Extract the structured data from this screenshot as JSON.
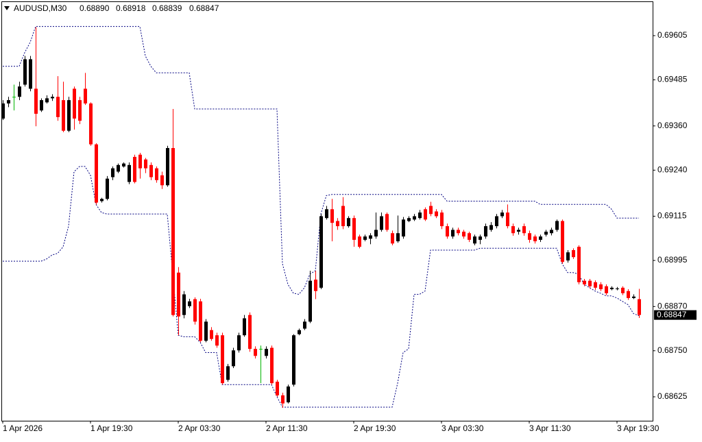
{
  "chart_data": {
    "type": "candlestick",
    "symbol": "AUDUSD,M30",
    "last_value_labels": [
      "0.68890",
      "0.68918",
      "0.68839",
      "0.68847"
    ],
    "categories": [
      "1 Apr 2026",
      null,
      null,
      null,
      null,
      null,
      null,
      null,
      null,
      null,
      null,
      null,
      null,
      null,
      null,
      null,
      "1 Apr 19:30",
      null,
      null,
      null,
      null,
      null,
      null,
      null,
      null,
      null,
      null,
      null,
      null,
      null,
      null,
      null,
      "2 Apr 03:30",
      null,
      null,
      null,
      null,
      null,
      null,
      null,
      null,
      null,
      null,
      null,
      null,
      null,
      null,
      null,
      "2 Apr 11:30",
      null,
      null,
      null,
      null,
      null,
      null,
      null,
      null,
      null,
      null,
      null,
      null,
      null,
      null,
      null,
      "2 Apr 19:30",
      null,
      null,
      null,
      null,
      null,
      null,
      null,
      null,
      null,
      null,
      null,
      null,
      null,
      null,
      null,
      "3 Apr 03:30",
      null,
      null,
      null,
      null,
      null,
      null,
      null,
      null,
      null,
      null,
      null,
      null,
      null,
      null,
      null,
      "3 Apr 11:30",
      null,
      null,
      null,
      null,
      null,
      null,
      null,
      null,
      null,
      null,
      null,
      null,
      null,
      null,
      null,
      "3 Apr 19:30",
      null,
      null,
      null,
      null
    ],
    "open": [
      0.6938,
      0.69421,
      0.69439,
      0.69439,
      0.69472,
      0.69461,
      0.69461,
      0.69402,
      0.69424,
      0.69435,
      0.69439,
      0.6943,
      0.69347,
      0.69461,
      0.6943,
      0.69461,
      0.69421,
      0.6931,
      0.69156,
      0.69162,
      0.69221,
      0.69236,
      0.6925,
      0.69208,
      0.69276,
      0.69282,
      0.69269,
      0.69254,
      0.69245,
      0.69226,
      0.69199,
      0.693,
      0.68962,
      0.68847,
      0.68871,
      0.6889,
      0.68884,
      0.68777,
      0.68806,
      0.68792,
      0.68792,
      0.68671,
      0.68708,
      0.68751,
      0.68792,
      0.68847,
      0.68755,
      0.68755,
      0.68736,
      0.68758,
      0.68666,
      0.68629,
      0.6861,
      0.68658,
      0.68795,
      0.6881,
      0.68829,
      0.68943,
      0.68921,
      0.6911,
      0.69134,
      0.69102,
      0.69143,
      0.69088,
      0.6911,
      0.6906,
      0.69051,
      0.69054,
      0.6906,
      0.69078,
      0.69121,
      0.69069,
      0.69047,
      0.6906,
      0.69102,
      0.69106,
      0.6911,
      0.69134,
      0.69143,
      0.69128,
      0.69125,
      0.69088,
      0.6906,
      0.69078,
      0.69073,
      0.69069,
      0.69041,
      0.69051,
      0.6906,
      0.69078,
      0.69088,
      0.69115,
      0.69125,
      0.69088,
      0.69073,
      0.69088,
      0.69069,
      0.6906,
      0.69051,
      0.69065,
      0.69069,
      0.69078,
      0.69102,
      0.68995,
      0.69023,
      0.69032,
      0.6894,
      0.6894,
      0.68936,
      0.6893,
      0.68925,
      0.68917,
      0.68917,
      0.68921,
      0.68912,
      0.68893,
      0.6889
    ],
    "high": [
      0.6943,
      0.69439,
      0.69472,
      0.6948,
      0.6955,
      0.6955,
      0.69628,
      0.69435,
      0.69443,
      0.69446,
      0.69495,
      0.6948,
      0.69439,
      0.69467,
      0.69439,
      0.69504,
      0.69424,
      0.69313,
      0.69165,
      0.69224,
      0.6925,
      0.69258,
      0.69261,
      0.69261,
      0.69282,
      0.69287,
      0.69273,
      0.69261,
      0.6925,
      0.69236,
      0.69306,
      0.69406,
      0.68977,
      0.68912,
      0.68891,
      0.68895,
      0.68891,
      0.68836,
      0.68814,
      0.68799,
      0.68799,
      0.68714,
      0.68758,
      0.68799,
      0.68847,
      0.68854,
      0.68762,
      0.68764,
      0.68762,
      0.68764,
      0.68671,
      0.68636,
      0.68658,
      0.68795,
      0.6881,
      0.68836,
      0.68967,
      0.68967,
      0.69121,
      0.69143,
      0.69162,
      0.6911,
      0.69167,
      0.69115,
      0.69117,
      0.69065,
      0.69065,
      0.69069,
      0.69125,
      0.69125,
      0.69125,
      0.69076,
      0.69117,
      0.69113,
      0.69115,
      0.69121,
      0.69132,
      0.69139,
      0.69154,
      0.69134,
      0.69132,
      0.69095,
      0.69084,
      0.69084,
      0.69078,
      0.69073,
      0.69065,
      0.69065,
      0.69095,
      0.69099,
      0.69121,
      0.69132,
      0.69147,
      0.69095,
      0.69084,
      0.69095,
      0.69076,
      0.69065,
      0.69065,
      0.69078,
      0.69084,
      0.69106,
      0.69106,
      0.69023,
      0.69028,
      0.69036,
      0.68945,
      0.68945,
      0.68941,
      0.68936,
      0.6893,
      0.68925,
      0.68923,
      0.68925,
      0.68917,
      0.68903,
      0.68918
    ],
    "low": [
      0.69376,
      0.69411,
      0.69402,
      0.6943,
      0.69467,
      0.69454,
      0.69359,
      0.69398,
      0.69421,
      0.69428,
      0.69374,
      0.69343,
      0.69343,
      0.6935,
      0.69365,
      0.69417,
      0.69306,
      0.69147,
      0.69152,
      0.69158,
      0.69213,
      0.69232,
      0.69247,
      0.69202,
      0.69204,
      0.69217,
      0.69232,
      0.69213,
      0.69206,
      0.69189,
      0.69195,
      0.68843,
      0.68792,
      0.68838,
      0.68866,
      0.68821,
      0.68773,
      0.68773,
      0.68777,
      0.68758,
      0.68658,
      0.68666,
      0.68703,
      0.68745,
      0.68788,
      0.68747,
      0.68729,
      0.68662,
      0.68729,
      0.68658,
      0.68625,
      0.68595,
      0.68607,
      0.68653,
      0.68792,
      0.68806,
      0.68825,
      0.6889,
      0.68917,
      0.69106,
      0.69047,
      0.69078,
      0.6908,
      0.69084,
      0.69032,
      0.69028,
      0.69047,
      0.69039,
      0.69054,
      0.69073,
      0.69073,
      0.69036,
      0.69043,
      0.69054,
      0.69099,
      0.69102,
      0.69106,
      0.69102,
      0.69115,
      0.6911,
      0.6908,
      0.69054,
      0.69054,
      0.69063,
      0.69054,
      0.69045,
      0.69036,
      0.69039,
      0.69054,
      0.69073,
      0.69082,
      0.6911,
      0.69082,
      0.69062,
      0.69065,
      0.69062,
      0.69043,
      0.69041,
      0.69045,
      0.6906,
      0.69063,
      0.69073,
      0.68986,
      0.68989,
      0.68999,
      0.6893,
      0.68925,
      0.68919,
      0.68915,
      0.68912,
      0.68901,
      0.68914,
      0.68914,
      0.68901,
      0.68888,
      0.6889,
      0.68839
    ],
    "close": [
      0.69421,
      0.6943,
      0.69439,
      0.69467,
      0.69541,
      0.69541,
      0.69393,
      0.6943,
      0.69435,
      0.69439,
      0.69384,
      0.69347,
      0.6943,
      0.6938,
      0.69374,
      0.69421,
      0.6931,
      0.69152,
      0.69162,
      0.69217,
      0.69245,
      0.69254,
      0.69258,
      0.69254,
      0.69208,
      0.69245,
      0.69245,
      0.69221,
      0.69213,
      0.69199,
      0.693,
      0.68847,
      0.68843,
      0.68903,
      0.68884,
      0.68829,
      0.68777,
      0.68829,
      0.68782,
      0.68764,
      0.68662,
      0.68708,
      0.68751,
      0.68792,
      0.68838,
      0.68755,
      0.68736,
      0.68755,
      0.68755,
      0.68662,
      0.68629,
      0.68607,
      0.68653,
      0.68792,
      0.68806,
      0.68829,
      0.6894,
      0.68912,
      0.69115,
      0.69134,
      0.69097,
      0.69088,
      0.69088,
      0.6911,
      0.69051,
      0.69032,
      0.6906,
      0.69063,
      0.69078,
      0.69115,
      0.69078,
      0.69041,
      0.69069,
      0.69106,
      0.6911,
      0.69115,
      0.69125,
      0.69106,
      0.69121,
      0.69115,
      0.69088,
      0.6906,
      0.69078,
      0.69069,
      0.6906,
      0.69051,
      0.6906,
      0.6906,
      0.69088,
      0.69091,
      0.69115,
      0.69125,
      0.69088,
      0.69069,
      0.69078,
      0.69069,
      0.69051,
      0.69047,
      0.6906,
      0.69073,
      0.69078,
      0.69102,
      0.68991,
      0.69017,
      0.69004,
      0.68936,
      0.6893,
      0.68925,
      0.68921,
      0.68917,
      0.68906,
      0.68921,
      0.68919,
      0.68906,
      0.68893,
      0.68897,
      0.68847
    ],
    "channel_upper": [
      0.69522,
      0.69522,
      0.69522,
      0.69522,
      0.69559,
      0.69587,
      0.6963,
      0.6963,
      0.6963,
      0.6963,
      0.6963,
      0.6963,
      0.6963,
      0.6963,
      0.6963,
      0.6963,
      0.6963,
      0.6963,
      0.6963,
      0.6963,
      0.6963,
      0.6963,
      0.6963,
      0.6963,
      0.6963,
      0.6963,
      0.6955,
      0.69522,
      0.69504,
      0.69504,
      0.69504,
      0.69504,
      0.69504,
      0.69504,
      0.69504,
      0.69406,
      0.69406,
      0.69406,
      0.69406,
      0.69406,
      0.69406,
      0.69406,
      0.69406,
      0.69406,
      0.69406,
      0.69406,
      0.69406,
      0.69406,
      0.69406,
      0.69406,
      0.69406,
      0.68986,
      0.6893,
      0.68906,
      0.68903,
      0.68921,
      0.68958,
      0.68967,
      0.69121,
      0.69171,
      0.69174,
      0.69174,
      0.69174,
      0.69174,
      0.69174,
      0.69174,
      0.69174,
      0.69174,
      0.69174,
      0.69174,
      0.69174,
      0.69174,
      0.69174,
      0.69174,
      0.69174,
      0.69174,
      0.69174,
      0.69174,
      0.69174,
      0.69174,
      0.69174,
      0.69156,
      0.69156,
      0.69156,
      0.69156,
      0.69156,
      0.69156,
      0.69156,
      0.69156,
      0.69156,
      0.69156,
      0.69156,
      0.69156,
      0.69156,
      0.69156,
      0.69156,
      0.69156,
      0.69156,
      0.69147,
      0.69147,
      0.69147,
      0.69147,
      0.69147,
      0.69147,
      0.69147,
      0.69147,
      0.69147,
      0.69147,
      0.69147,
      0.69147,
      0.69147,
      0.69134,
      0.6911,
      0.6911,
      0.6911,
      0.6911,
      0.6911
    ],
    "channel_lower": [
      0.68993,
      0.68993,
      0.68993,
      0.68993,
      0.68993,
      0.68993,
      0.68993,
      0.68993,
      0.68999,
      0.6901,
      0.69014,
      0.69032,
      0.69088,
      0.69236,
      0.6925,
      0.6925,
      0.69226,
      0.69147,
      0.69125,
      0.69121,
      0.69121,
      0.69121,
      0.69121,
      0.69121,
      0.69121,
      0.69121,
      0.69121,
      0.69121,
      0.69121,
      0.69121,
      0.69121,
      0.68958,
      0.68792,
      0.68788,
      0.68788,
      0.68788,
      0.68773,
      0.68745,
      0.68745,
      0.68745,
      0.68658,
      0.68658,
      0.68658,
      0.68658,
      0.68658,
      0.68658,
      0.68658,
      0.68658,
      0.68658,
      0.68658,
      0.68625,
      0.68597,
      0.68597,
      0.68597,
      0.68597,
      0.68597,
      0.68597,
      0.68597,
      0.68597,
      0.68597,
      0.68597,
      0.68597,
      0.68597,
      0.68597,
      0.68597,
      0.68597,
      0.68597,
      0.68597,
      0.68597,
      0.68597,
      0.68597,
      0.68597,
      0.68662,
      0.68745,
      0.68755,
      0.68903,
      0.68903,
      0.68912,
      0.69023,
      0.69023,
      0.69023,
      0.69023,
      0.69023,
      0.69023,
      0.69023,
      0.69023,
      0.69023,
      0.69028,
      0.69028,
      0.69028,
      0.69028,
      0.69028,
      0.69028,
      0.69028,
      0.69028,
      0.69028,
      0.69028,
      0.69028,
      0.69028,
      0.69028,
      0.69028,
      0.69028,
      0.68986,
      0.68962,
      0.68962,
      0.68958,
      0.6893,
      0.68921,
      0.68912,
      0.68906,
      0.68899,
      0.68899,
      0.68893,
      0.68884,
      0.68875,
      0.68851,
      0.68845
    ],
    "ylim": [
      0.6856,
      0.69698
    ],
    "yticks": [
      0.69605,
      0.69485,
      {
        "value": 0.6936,
        "label": "0.69360"
      },
      {
        "value": 0.6924,
        "label": "0.69240"
      },
      0.69115,
      0.68995,
      {
        "value": 0.6887,
        "label": "0.68870"
      },
      {
        "value": 0.6875,
        "label": "0.68750"
      },
      0.68625
    ],
    "colors": {
      "up": "#000000",
      "down": "#ff0000",
      "doji": "#00b400",
      "channel": "#000080",
      "price_tag": "#000000"
    }
  }
}
